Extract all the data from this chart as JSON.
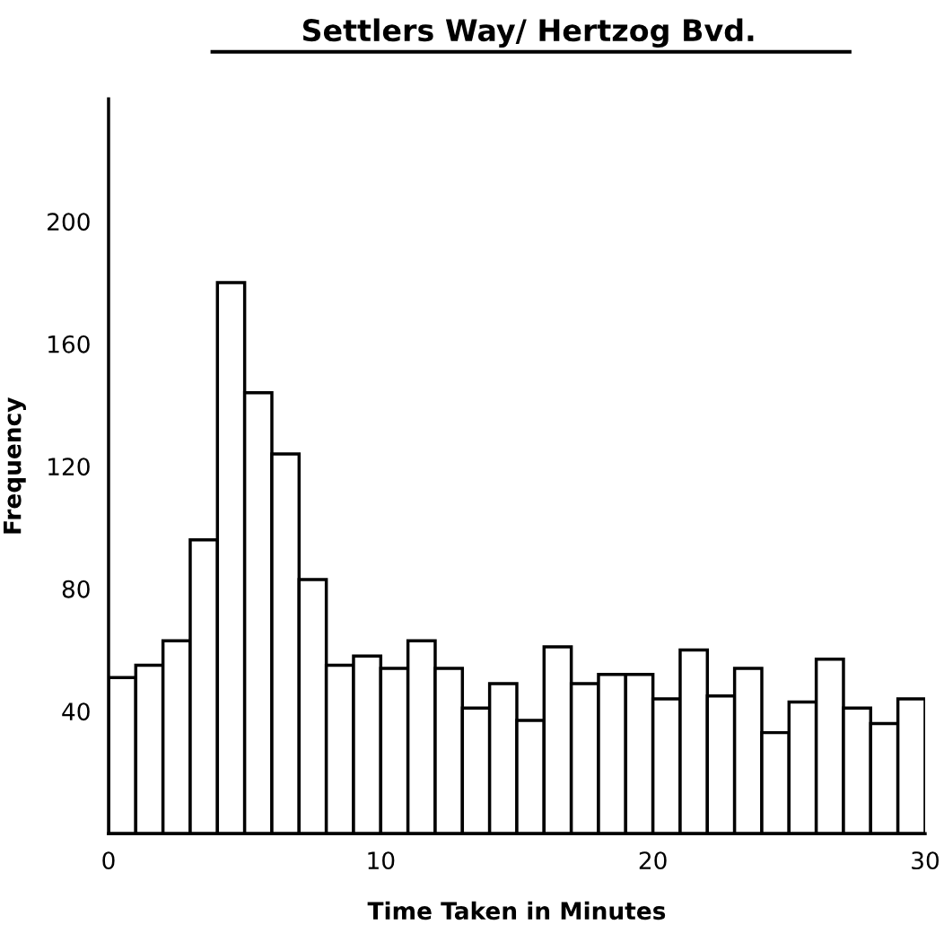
{
  "chart_data": {
    "type": "histogram",
    "title": "Settlers Way/ Hertzog Bvd.",
    "xlabel": "Time Taken in Minutes",
    "ylabel": "Frequency",
    "bins": [
      0,
      1,
      2,
      3,
      4,
      5,
      6,
      7,
      8,
      9,
      10,
      11,
      12,
      13,
      14,
      15,
      16,
      17,
      18,
      19,
      20,
      21,
      22,
      23,
      24,
      25,
      26,
      27,
      28,
      29,
      30
    ],
    "values": [
      51,
      55,
      63,
      96,
      180,
      144,
      124,
      83,
      55,
      58,
      54,
      63,
      54,
      41,
      49,
      37,
      61,
      49,
      52,
      52,
      44,
      60,
      45,
      54,
      33,
      43,
      57,
      41,
      36,
      44
    ],
    "color": "#ffffff",
    "xlim": [
      0,
      30
    ],
    "xticks": [
      0,
      10,
      20,
      30
    ],
    "ylim": [
      0,
      240
    ],
    "yticks": [
      40,
      80,
      120,
      160,
      200
    ],
    "grid": false,
    "legend": false
  }
}
